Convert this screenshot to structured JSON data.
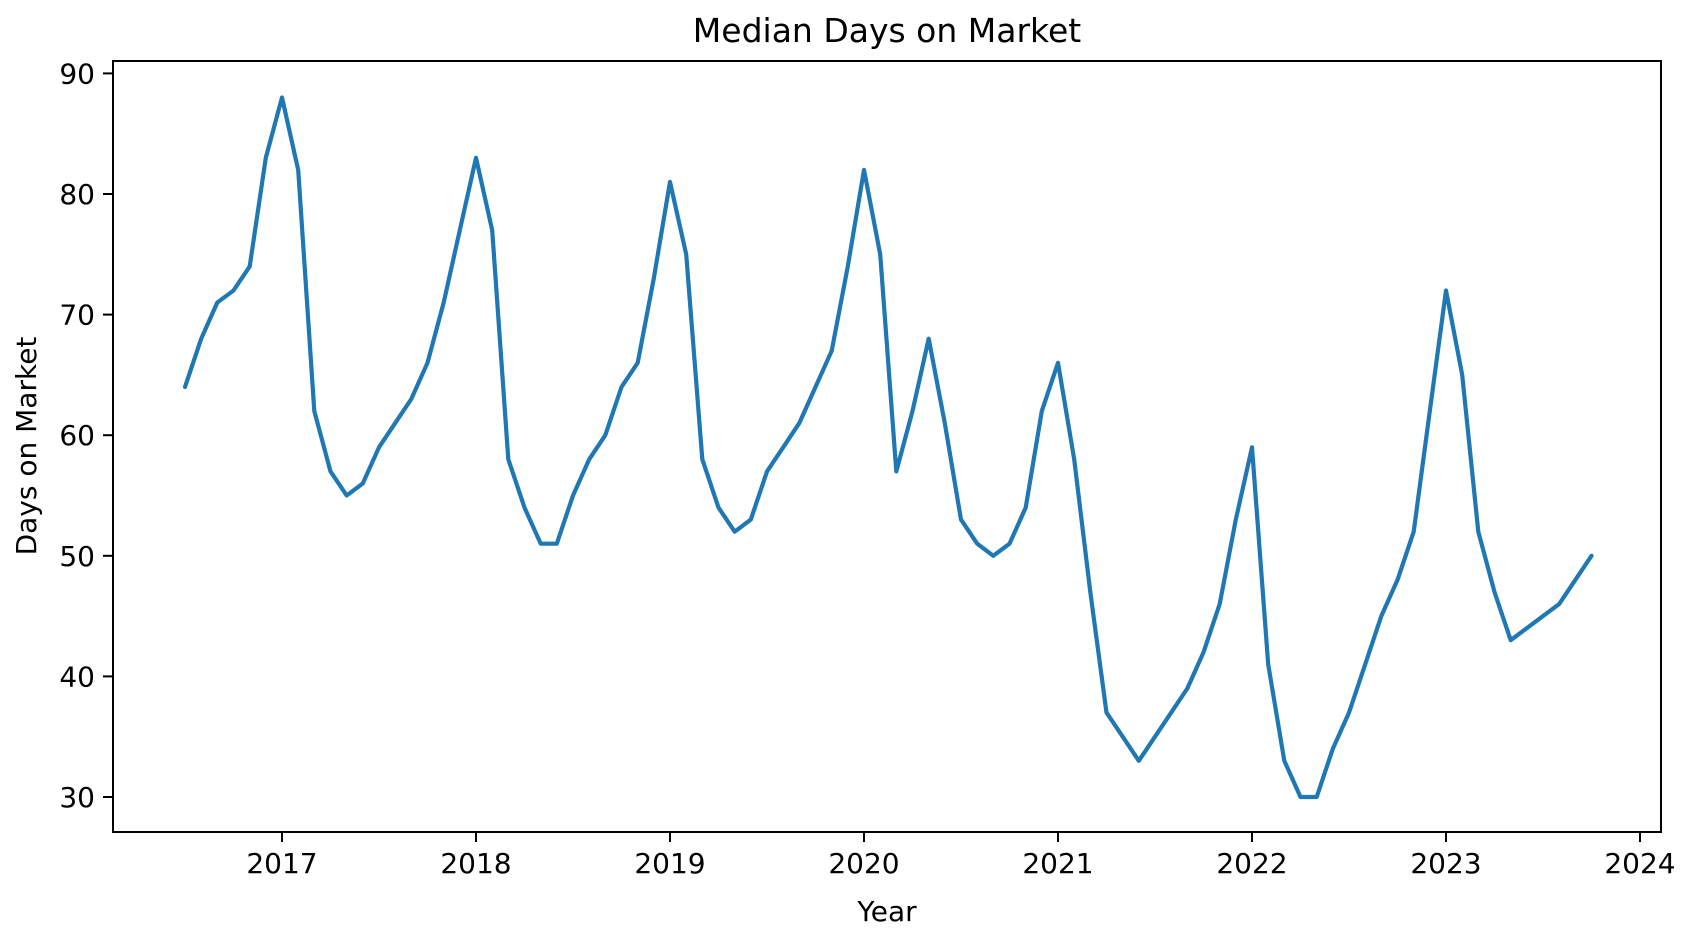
{
  "chart_data": {
    "type": "line",
    "title": "Median Days on Market",
    "xlabel": "Year",
    "ylabel": "Days on Market",
    "legend": "none",
    "grid": false,
    "line_color": "#1f77b4",
    "background_color": "#ffffff",
    "x_tick_labels": [
      "2017",
      "2018",
      "2019",
      "2020",
      "2021",
      "2022",
      "2023",
      "2024"
    ],
    "y_tick_labels": [
      "30",
      "40",
      "50",
      "60",
      "70",
      "80",
      "90"
    ],
    "y_ticks": [
      30,
      40,
      50,
      60,
      70,
      80,
      90
    ],
    "x_ticks_years": [
      2017,
      2018,
      2019,
      2020,
      2021,
      2022,
      2023,
      2024
    ],
    "ylim": [
      27.1,
      91.0
    ],
    "frequency": "monthly",
    "start_month": "2016-07",
    "end_month": "2023-10",
    "values": [
      64,
      68,
      71,
      72,
      74,
      83,
      88,
      82,
      62,
      57,
      55,
      56,
      59,
      61,
      63,
      66,
      71,
      77,
      83,
      77,
      58,
      54,
      51,
      51,
      55,
      58,
      60,
      64,
      66,
      73,
      81,
      75,
      58,
      54,
      52,
      53,
      57,
      59,
      61,
      64,
      67,
      74,
      82,
      75,
      57,
      62,
      68,
      61,
      53,
      51,
      50,
      51,
      54,
      62,
      66,
      58,
      47,
      37,
      35,
      33,
      35,
      37,
      39,
      42,
      46,
      53,
      59,
      41,
      33,
      30,
      30,
      34,
      37,
      41,
      45,
      48,
      52,
      62,
      72,
      65,
      52,
      47,
      43,
      44,
      45,
      46,
      48,
      50
    ]
  }
}
